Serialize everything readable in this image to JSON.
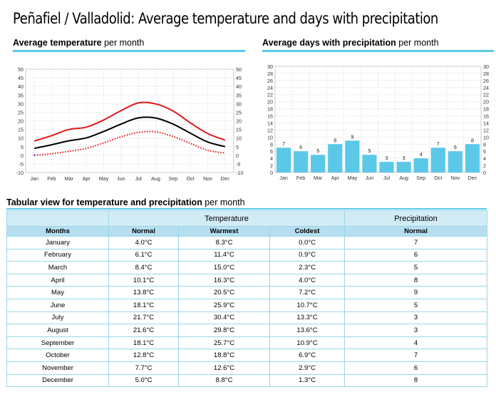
{
  "page": {
    "title": "Peñafiel / Valladolid: Average temperature and days with precipitation"
  },
  "temp_section": {
    "title_bold": "Average temperature",
    "title_rest": " per month"
  },
  "precip_section": {
    "title_bold": "Average days with precipitation",
    "title_rest": " per month"
  },
  "table_section": {
    "title_bold": "Tabular view for temperature and precipitation",
    "title_rest": " per month"
  },
  "colors": {
    "warmest": "#e01818",
    "normal": "#000000",
    "coldest": "#e01818",
    "precip_bar": "#5bc8e8",
    "accent": "#5bc8e8"
  },
  "chart_data": [
    {
      "type": "line",
      "categories": [
        "Jan",
        "Feb",
        "Mar",
        "Apr",
        "May",
        "Jun",
        "Jul",
        "Aug",
        "Sep",
        "Oct",
        "Nov",
        "Dec"
      ],
      "series": [
        {
          "key": "warmest",
          "values": [
            8.3,
            11.4,
            15.0,
            16.3,
            20.5,
            25.9,
            30.4,
            29.8,
            25.7,
            18.8,
            12.6,
            8.8
          ]
        },
        {
          "key": "normal",
          "values": [
            4.0,
            6.1,
            8.4,
            10.1,
            13.8,
            18.1,
            21.7,
            21.6,
            18.1,
            12.8,
            7.7,
            5.0
          ]
        },
        {
          "key": "coldest",
          "values": [
            0.0,
            0.9,
            2.3,
            4.0,
            7.2,
            10.7,
            13.3,
            13.6,
            10.9,
            6.9,
            2.9,
            1.3
          ]
        }
      ],
      "ylim": [
        -10,
        50
      ],
      "yticks": [
        -10,
        -5,
        0,
        5,
        10,
        15,
        20,
        25,
        30,
        35,
        40,
        45,
        50
      ],
      "grid": true
    },
    {
      "type": "bar",
      "categories": [
        "Jan",
        "Feb",
        "Mar",
        "Apr",
        "May",
        "Jun",
        "Jul",
        "Aug",
        "Sep",
        "Oct",
        "Nov",
        "Dec"
      ],
      "values": [
        7,
        6,
        5,
        8,
        9,
        5,
        3,
        3,
        4,
        7,
        6,
        8
      ],
      "ylim": [
        0,
        30
      ],
      "yticks": [
        0,
        2,
        4,
        6,
        8,
        10,
        12,
        14,
        16,
        18,
        20,
        22,
        24,
        26,
        28,
        30
      ],
      "grid": true
    }
  ],
  "table": {
    "group_headers": {
      "temperature": "Temperature",
      "precipitation": "Precipitation"
    },
    "columns": [
      "Months",
      "Normal",
      "Warmest",
      "Coldest",
      "Normal"
    ],
    "rows": [
      [
        "January",
        "4.0°C",
        "8.3°C",
        "0.0°C",
        "7"
      ],
      [
        "February",
        "6.1°C",
        "11.4°C",
        "0.9°C",
        "6"
      ],
      [
        "March",
        "8.4°C",
        "15.0°C",
        "2.3°C",
        "5"
      ],
      [
        "April",
        "10.1°C",
        "16.3°C",
        "4.0°C",
        "8"
      ],
      [
        "May",
        "13.8°C",
        "20.5°C",
        "7.2°C",
        "9"
      ],
      [
        "June",
        "18.1°C",
        "25.9°C",
        "10.7°C",
        "5"
      ],
      [
        "July",
        "21.7°C",
        "30.4°C",
        "13.3°C",
        "3"
      ],
      [
        "August",
        "21.6°C",
        "29.8°C",
        "13.6°C",
        "3"
      ],
      [
        "September",
        "18.1°C",
        "25.7°C",
        "10.9°C",
        "4"
      ],
      [
        "October",
        "12.8°C",
        "18.8°C",
        "6.9°C",
        "7"
      ],
      [
        "November",
        "7.7°C",
        "12.6°C",
        "2.9°C",
        "6"
      ],
      [
        "December",
        "5.0°C",
        "8.8°C",
        "1.3°C",
        "8"
      ]
    ]
  }
}
